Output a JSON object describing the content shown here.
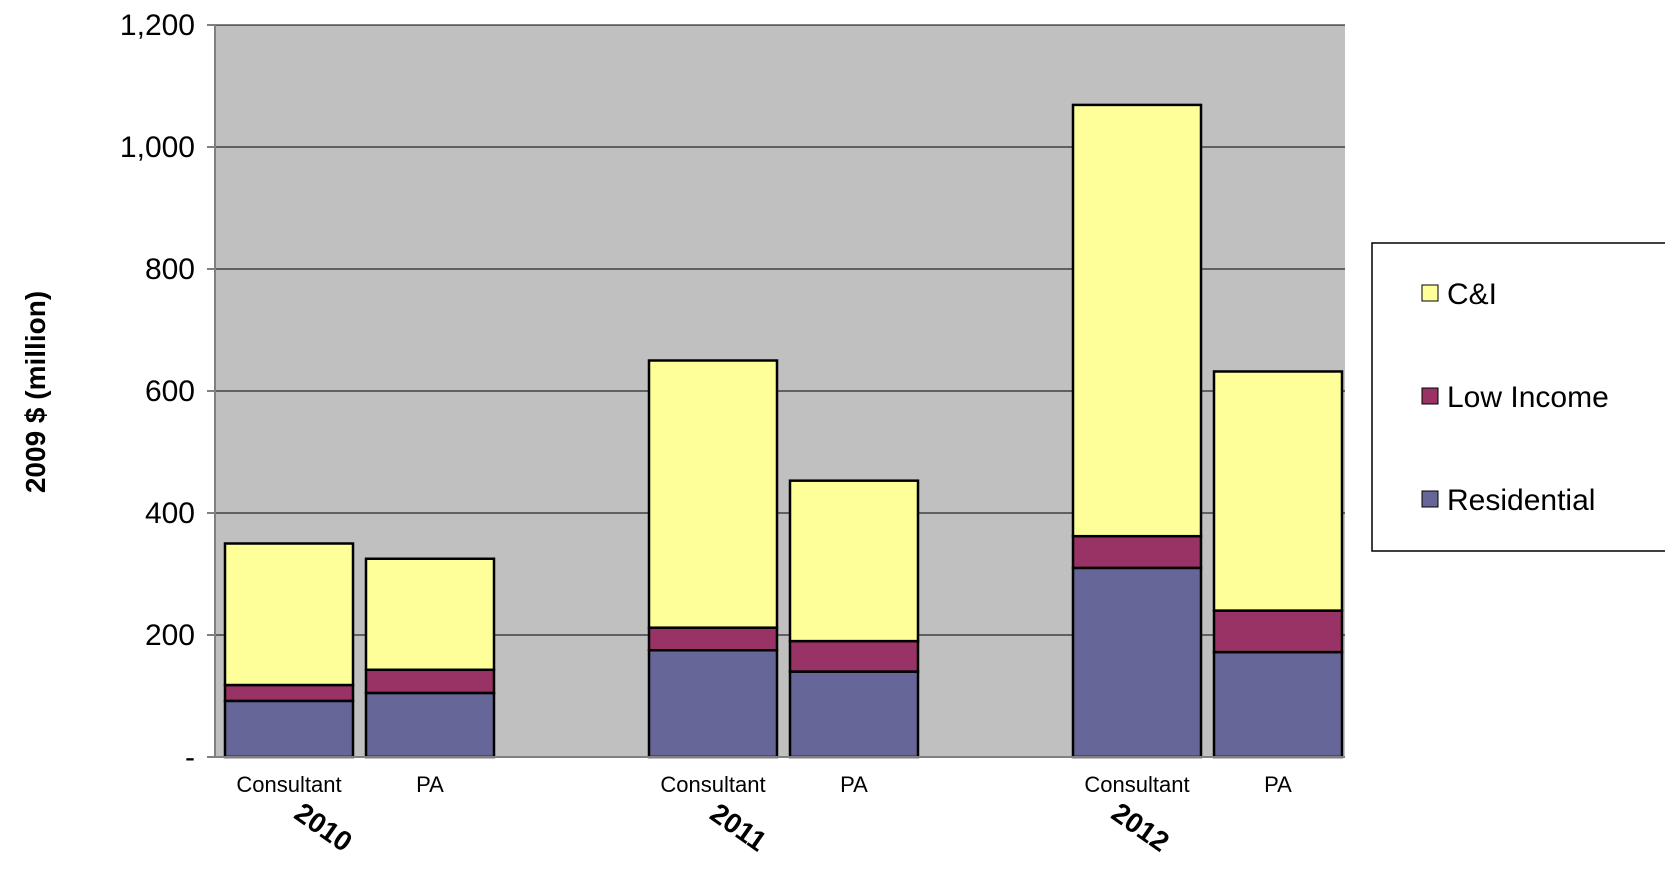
{
  "chart_data": {
    "type": "bar",
    "stacked": true,
    "title": "",
    "ylabel": "2009 $ (million)",
    "xlabel": "",
    "ylim": [
      0,
      1200
    ],
    "yticks": [
      {
        "value": 0,
        "label": "-"
      },
      {
        "value": 200,
        "label": "200"
      },
      {
        "value": 400,
        "label": "400"
      },
      {
        "value": 600,
        "label": "600"
      },
      {
        "value": 800,
        "label": "800"
      },
      {
        "value": 1000,
        "label": "1,000"
      },
      {
        "value": 1200,
        "label": "1,200"
      }
    ],
    "grid": true,
    "legend_position": "right",
    "groups": [
      "2010",
      "2011",
      "2012"
    ],
    "categories": [
      "Consultant",
      "PA",
      "Consultant",
      "PA",
      "Consultant",
      "PA"
    ],
    "group_index": [
      0,
      0,
      1,
      1,
      2,
      2
    ],
    "series": [
      {
        "name": "Residential",
        "color": "#666699",
        "values": [
          92,
          105,
          175,
          140,
          310,
          172
        ]
      },
      {
        "name": "Low Income",
        "color": "#993366",
        "values": [
          26,
          38,
          37,
          50,
          52,
          68
        ]
      },
      {
        "name": "C&I",
        "color": "#FFFF99",
        "values": [
          232,
          182,
          438,
          263,
          707,
          392
        ]
      }
    ],
    "legend_order": [
      "C&I",
      "Low Income",
      "Residential"
    ],
    "plot_background": "#C0C0C0"
  }
}
